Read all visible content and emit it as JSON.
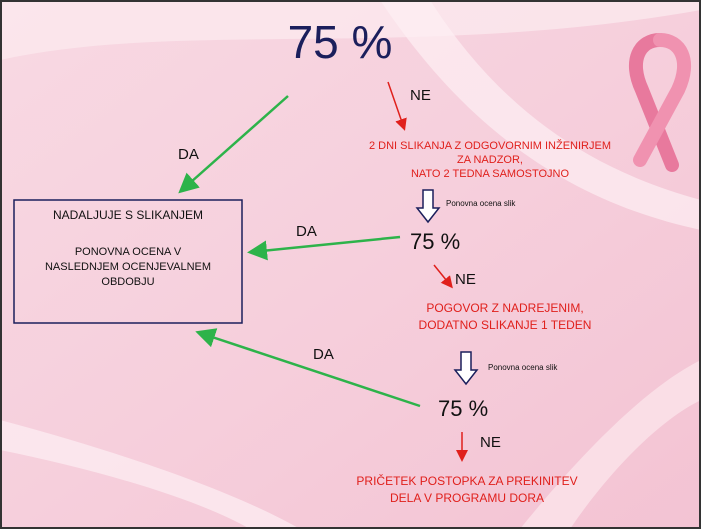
{
  "flow": {
    "check_1": {
      "percent": "75 %",
      "yes": "DA",
      "no": "NE",
      "no_action": [
        "2 DNI SLIKANJA Z ODGOVORNIM INŽENIRJEM",
        "ZA NADZOR,",
        "NATO 2 TEDNA SAMOSTOJNO"
      ],
      "reassess": "Ponovna ocena slik"
    },
    "check_2": {
      "percent": "75 %",
      "yes": "DA",
      "no": "NE",
      "no_action": [
        "POGOVOR Z NADREJENIM,",
        "DODATNO SLIKANJE 1 TEDEN"
      ],
      "reassess": "Ponovna ocena slik"
    },
    "check_3": {
      "percent": "75 %",
      "yes": "DA",
      "no": "NE",
      "no_action": [
        "PRIČETEK POSTOPKA ZA PREKINITEV",
        "DELA V PROGRAMU DORA"
      ]
    },
    "continue_box": {
      "title": "NADALJUJE S SLIKANJEM",
      "lines": [
        "PONOVNA OCENA V",
        "NASLEDNJEM OCENJEVALNEM",
        "OBDOBJU"
      ]
    }
  }
}
